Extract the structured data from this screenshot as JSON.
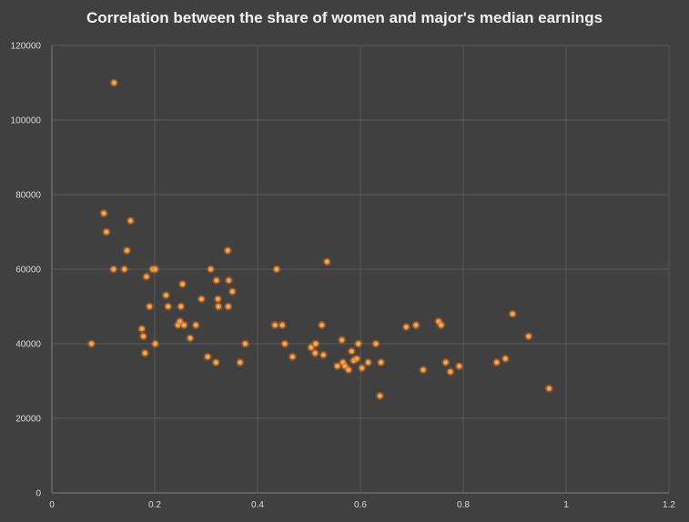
{
  "chart_data": {
    "type": "scatter",
    "title": "Correlation between the share of women and major's median earnings",
    "xlabel": "",
    "ylabel": "",
    "xlim": [
      0,
      1.2
    ],
    "ylim": [
      0,
      120000
    ],
    "x_ticks": [
      "0",
      "0.2",
      "0.4",
      "0.6",
      "0.8",
      "1",
      "1.2"
    ],
    "y_ticks": [
      "0",
      "20000",
      "40000",
      "60000",
      "80000",
      "100000",
      "120000"
    ],
    "grid": true,
    "legend": "none",
    "marker_color": "#f28c28",
    "background": "#404040",
    "points": [
      [
        0.077,
        40000
      ],
      [
        0.101,
        75000
      ],
      [
        0.106,
        70000
      ],
      [
        0.121,
        110000
      ],
      [
        0.12,
        60000
      ],
      [
        0.141,
        60000
      ],
      [
        0.146,
        65000
      ],
      [
        0.153,
        73000
      ],
      [
        0.175,
        44000
      ],
      [
        0.178,
        42000
      ],
      [
        0.181,
        37500
      ],
      [
        0.184,
        58000
      ],
      [
        0.19,
        50000
      ],
      [
        0.196,
        60000
      ],
      [
        0.201,
        60000
      ],
      [
        0.201,
        40000
      ],
      [
        0.222,
        53000
      ],
      [
        0.226,
        50000
      ],
      [
        0.245,
        45000
      ],
      [
        0.249,
        46000
      ],
      [
        0.251,
        50000
      ],
      [
        0.254,
        56000
      ],
      [
        0.257,
        45000
      ],
      [
        0.269,
        41500
      ],
      [
        0.28,
        45000
      ],
      [
        0.291,
        52000
      ],
      [
        0.303,
        36500
      ],
      [
        0.309,
        60000
      ],
      [
        0.319,
        35000
      ],
      [
        0.32,
        57000
      ],
      [
        0.323,
        52000
      ],
      [
        0.324,
        50000
      ],
      [
        0.342,
        65000
      ],
      [
        0.343,
        50000
      ],
      [
        0.344,
        57000
      ],
      [
        0.351,
        54000
      ],
      [
        0.366,
        35000
      ],
      [
        0.376,
        40000
      ],
      [
        0.437,
        60000
      ],
      [
        0.434,
        45000
      ],
      [
        0.448,
        45000
      ],
      [
        0.453,
        40000
      ],
      [
        0.468,
        36500
      ],
      [
        0.504,
        39000
      ],
      [
        0.513,
        40000
      ],
      [
        0.512,
        37500
      ],
      [
        0.525,
        45000
      ],
      [
        0.528,
        37000
      ],
      [
        0.535,
        62000
      ],
      [
        0.555,
        34000
      ],
      [
        0.564,
        41000
      ],
      [
        0.566,
        35000
      ],
      [
        0.57,
        34000
      ],
      [
        0.577,
        33000
      ],
      [
        0.583,
        38000
      ],
      [
        0.587,
        35500
      ],
      [
        0.593,
        36000
      ],
      [
        0.596,
        40000
      ],
      [
        0.603,
        33500
      ],
      [
        0.615,
        35000
      ],
      [
        0.63,
        40000
      ],
      [
        0.638,
        26000
      ],
      [
        0.64,
        35000
      ],
      [
        0.689,
        44500
      ],
      [
        0.708,
        45000
      ],
      [
        0.722,
        33000
      ],
      [
        0.752,
        46000
      ],
      [
        0.757,
        45000
      ],
      [
        0.766,
        35000
      ],
      [
        0.775,
        32500
      ],
      [
        0.792,
        34000
      ],
      [
        0.865,
        35000
      ],
      [
        0.882,
        36000
      ],
      [
        0.896,
        48000
      ],
      [
        0.927,
        42000
      ],
      [
        0.967,
        28000
      ]
    ]
  }
}
